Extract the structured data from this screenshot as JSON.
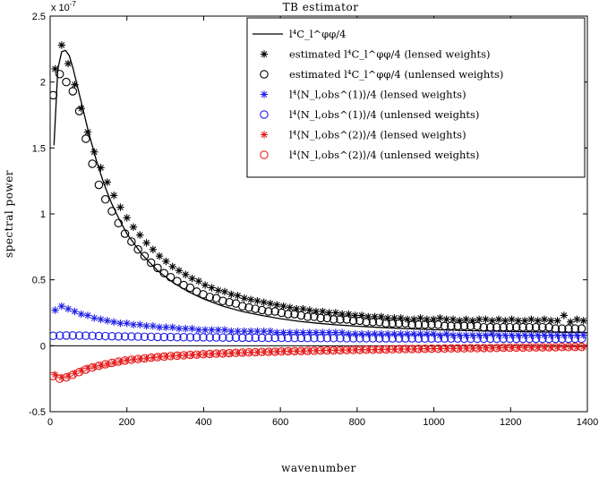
{
  "chart_data": {
    "type": "scatter",
    "title": "TB estimator",
    "xlabel": "wavenumber",
    "ylabel": "spectral power",
    "y_exponent_label": "x 10",
    "y_exponent_power": "-7",
    "xlim": [
      0,
      1400
    ],
    "ylim": [
      -0.5,
      2.5
    ],
    "xticks": [
      "0",
      "200",
      "400",
      "600",
      "800",
      "1000",
      "1200",
      "1400"
    ],
    "yticks": [
      "-0.5",
      "0",
      "0.5",
      "1",
      "1.5",
      "2",
      "2.5"
    ],
    "legend_position": "top-right",
    "colors": {
      "black": "#000000",
      "blue": "#1f1fe6",
      "red": "#e61f1f"
    },
    "series": [
      {
        "name": "l⁴C_l^φφ/4",
        "style": "line",
        "color": "#000000",
        "x": [
          10,
          20,
          30,
          40,
          50,
          60,
          80,
          100,
          120,
          140,
          160,
          180,
          200,
          240,
          280,
          320,
          360,
          400,
          450,
          500,
          550,
          600,
          650,
          700,
          750,
          800,
          850,
          900,
          950,
          1000,
          1100,
          1200,
          1300,
          1400
        ],
        "y": [
          1.52,
          2.1,
          2.23,
          2.24,
          2.2,
          2.1,
          1.86,
          1.62,
          1.41,
          1.23,
          1.08,
          0.96,
          0.85,
          0.69,
          0.57,
          0.48,
          0.41,
          0.355,
          0.3,
          0.26,
          0.23,
          0.205,
          0.185,
          0.17,
          0.158,
          0.148,
          0.14,
          0.133,
          0.127,
          0.122,
          0.114,
          0.108,
          0.104,
          0.1
        ]
      },
      {
        "name": "estimated l⁴C_l^φφ/4 (lensed weights)",
        "style": "marker",
        "marker": "asterisk",
        "color": "#000000",
        "x": [
          13,
          30,
          47,
          64,
          81,
          98,
          115,
          132,
          149,
          166,
          183,
          200,
          217,
          234,
          251,
          268,
          285,
          302,
          319,
          336,
          353,
          370,
          387,
          404,
          421,
          438,
          455,
          472,
          489,
          506,
          523,
          540,
          557,
          574,
          591,
          608,
          625,
          642,
          659,
          676,
          693,
          710,
          727,
          744,
          761,
          778,
          795,
          812,
          829,
          846,
          863,
          880,
          897,
          914,
          931,
          948,
          965,
          982,
          999,
          1016,
          1033,
          1050,
          1067,
          1084,
          1101,
          1118,
          1135,
          1152,
          1169,
          1186,
          1203,
          1220,
          1237,
          1254,
          1271,
          1288,
          1305,
          1322,
          1339,
          1356,
          1373,
          1390
        ],
        "y": [
          2.1,
          2.28,
          2.14,
          1.98,
          1.8,
          1.62,
          1.47,
          1.35,
          1.24,
          1.14,
          1.05,
          0.97,
          0.9,
          0.84,
          0.78,
          0.73,
          0.68,
          0.64,
          0.6,
          0.57,
          0.54,
          0.51,
          0.49,
          0.46,
          0.44,
          0.42,
          0.41,
          0.39,
          0.38,
          0.36,
          0.35,
          0.34,
          0.33,
          0.32,
          0.31,
          0.3,
          0.29,
          0.28,
          0.28,
          0.27,
          0.26,
          0.26,
          0.25,
          0.25,
          0.24,
          0.24,
          0.23,
          0.23,
          0.22,
          0.22,
          0.22,
          0.21,
          0.21,
          0.21,
          0.2,
          0.2,
          0.21,
          0.2,
          0.2,
          0.21,
          0.2,
          0.2,
          0.19,
          0.2,
          0.19,
          0.2,
          0.2,
          0.19,
          0.2,
          0.19,
          0.2,
          0.19,
          0.19,
          0.2,
          0.19,
          0.2,
          0.19,
          0.19,
          0.23,
          0.18,
          0.2,
          0.19
        ]
      },
      {
        "name": "estimated l⁴C_l^φφ/4 (unlensed weights)",
        "style": "marker",
        "marker": "circle",
        "color": "#000000",
        "x": [
          8,
          25,
          42,
          59,
          76,
          93,
          110,
          127,
          144,
          161,
          178,
          195,
          212,
          229,
          246,
          263,
          280,
          297,
          314,
          331,
          348,
          365,
          382,
          399,
          416,
          433,
          450,
          467,
          484,
          501,
          518,
          535,
          552,
          569,
          586,
          603,
          620,
          637,
          654,
          671,
          688,
          705,
          722,
          739,
          756,
          773,
          790,
          807,
          824,
          841,
          858,
          875,
          892,
          909,
          926,
          943,
          960,
          977,
          994,
          1011,
          1028,
          1045,
          1062,
          1079,
          1096,
          1113,
          1130,
          1147,
          1164,
          1181,
          1198,
          1215,
          1232,
          1249,
          1266,
          1283,
          1300,
          1317,
          1334,
          1351,
          1368,
          1385
        ],
        "y": [
          1.9,
          2.06,
          2.0,
          1.93,
          1.78,
          1.57,
          1.38,
          1.22,
          1.11,
          1.02,
          0.93,
          0.85,
          0.79,
          0.73,
          0.68,
          0.63,
          0.59,
          0.55,
          0.52,
          0.49,
          0.46,
          0.44,
          0.41,
          0.39,
          0.37,
          0.36,
          0.34,
          0.33,
          0.32,
          0.3,
          0.29,
          0.28,
          0.27,
          0.26,
          0.26,
          0.25,
          0.24,
          0.24,
          0.23,
          0.22,
          0.22,
          0.21,
          0.21,
          0.2,
          0.2,
          0.2,
          0.19,
          0.19,
          0.18,
          0.18,
          0.18,
          0.17,
          0.17,
          0.17,
          0.17,
          0.16,
          0.16,
          0.16,
          0.16,
          0.16,
          0.15,
          0.15,
          0.15,
          0.15,
          0.15,
          0.15,
          0.14,
          0.14,
          0.14,
          0.14,
          0.14,
          0.14,
          0.14,
          0.14,
          0.14,
          0.14,
          0.14,
          0.13,
          0.13,
          0.13,
          0.13,
          0.13
        ]
      },
      {
        "name": "l⁴⟨N_l,obs^(1)⟩/4 (lensed weights)",
        "style": "marker",
        "marker": "asterisk",
        "color": "#1f1fe6",
        "x": [
          13,
          30,
          47,
          64,
          81,
          98,
          115,
          132,
          149,
          166,
          183,
          200,
          217,
          234,
          251,
          268,
          285,
          302,
          319,
          336,
          353,
          370,
          387,
          404,
          421,
          438,
          455,
          472,
          489,
          506,
          523,
          540,
          557,
          574,
          591,
          608,
          625,
          642,
          659,
          676,
          693,
          710,
          727,
          744,
          761,
          778,
          795,
          812,
          829,
          846,
          863,
          880,
          897,
          914,
          931,
          948,
          965,
          982,
          999,
          1016,
          1033,
          1050,
          1067,
          1084,
          1101,
          1118,
          1135,
          1152,
          1169,
          1186,
          1203,
          1220,
          1237,
          1254,
          1271,
          1288,
          1305,
          1322,
          1339,
          1356,
          1373,
          1390
        ],
        "y": [
          0.27,
          0.3,
          0.28,
          0.26,
          0.24,
          0.23,
          0.21,
          0.2,
          0.19,
          0.18,
          0.17,
          0.17,
          0.16,
          0.16,
          0.15,
          0.15,
          0.14,
          0.14,
          0.14,
          0.13,
          0.13,
          0.13,
          0.12,
          0.12,
          0.12,
          0.12,
          0.12,
          0.11,
          0.11,
          0.11,
          0.11,
          0.11,
          0.11,
          0.11,
          0.1,
          0.1,
          0.1,
          0.1,
          0.1,
          0.1,
          0.1,
          0.1,
          0.1,
          0.1,
          0.1,
          0.09,
          0.09,
          0.09,
          0.09,
          0.09,
          0.09,
          0.09,
          0.09,
          0.09,
          0.09,
          0.09,
          0.09,
          0.09,
          0.09,
          0.08,
          0.09,
          0.08,
          0.08,
          0.08,
          0.08,
          0.08,
          0.08,
          0.09,
          0.08,
          0.08,
          0.08,
          0.08,
          0.08,
          0.08,
          0.08,
          0.08,
          0.08,
          0.08,
          0.08,
          0.08,
          0.08,
          0.08
        ]
      },
      {
        "name": "l⁴⟨N_l,obs^(1)⟩/4 (unlensed weights)",
        "style": "marker",
        "marker": "circle",
        "color": "#1f1fe6",
        "x": [
          8,
          25,
          42,
          59,
          76,
          93,
          110,
          127,
          144,
          161,
          178,
          195,
          212,
          229,
          246,
          263,
          280,
          297,
          314,
          331,
          348,
          365,
          382,
          399,
          416,
          433,
          450,
          467,
          484,
          501,
          518,
          535,
          552,
          569,
          586,
          603,
          620,
          637,
          654,
          671,
          688,
          705,
          722,
          739,
          756,
          773,
          790,
          807,
          824,
          841,
          858,
          875,
          892,
          909,
          926,
          943,
          960,
          977,
          994,
          1011,
          1028,
          1045,
          1062,
          1079,
          1096,
          1113,
          1130,
          1147,
          1164,
          1181,
          1198,
          1215,
          1232,
          1249,
          1266,
          1283,
          1300,
          1317,
          1334,
          1351,
          1368,
          1385
        ],
        "y": [
          0.075,
          0.077,
          0.078,
          0.078,
          0.077,
          0.076,
          0.075,
          0.074,
          0.073,
          0.072,
          0.071,
          0.07,
          0.07,
          0.069,
          0.068,
          0.068,
          0.067,
          0.066,
          0.066,
          0.065,
          0.065,
          0.064,
          0.064,
          0.064,
          0.063,
          0.063,
          0.062,
          0.062,
          0.062,
          0.061,
          0.061,
          0.061,
          0.06,
          0.06,
          0.06,
          0.06,
          0.059,
          0.059,
          0.059,
          0.059,
          0.058,
          0.058,
          0.058,
          0.058,
          0.058,
          0.057,
          0.057,
          0.057,
          0.057,
          0.057,
          0.056,
          0.056,
          0.056,
          0.056,
          0.056,
          0.056,
          0.055,
          0.055,
          0.055,
          0.055,
          0.055,
          0.055,
          0.055,
          0.054,
          0.054,
          0.054,
          0.054,
          0.054,
          0.054,
          0.054,
          0.054,
          0.053,
          0.053,
          0.053,
          0.053,
          0.053,
          0.053,
          0.053,
          0.053,
          0.053,
          0.053,
          0.053
        ]
      },
      {
        "name": "l⁴⟨N_l,obs^(2)⟩/4 (lensed weights)",
        "style": "marker",
        "marker": "asterisk",
        "color": "#e61f1f",
        "x": [
          13,
          30,
          47,
          64,
          81,
          98,
          115,
          132,
          149,
          166,
          183,
          200,
          217,
          234,
          251,
          268,
          285,
          302,
          319,
          336,
          353,
          370,
          387,
          404,
          421,
          438,
          455,
          472,
          489,
          506,
          523,
          540,
          557,
          574,
          591,
          608,
          625,
          642,
          659,
          676,
          693,
          710,
          727,
          744,
          761,
          778,
          795,
          812,
          829,
          846,
          863,
          880,
          897,
          914,
          931,
          948,
          965,
          982,
          999,
          1016,
          1033,
          1050,
          1067,
          1084,
          1101,
          1118,
          1135,
          1152,
          1169,
          1186,
          1203,
          1220,
          1237,
          1254,
          1271,
          1288,
          1305,
          1322,
          1339,
          1356,
          1373,
          1390
        ],
        "y": [
          -0.22,
          -0.24,
          -0.23,
          -0.21,
          -0.19,
          -0.17,
          -0.16,
          -0.15,
          -0.14,
          -0.13,
          -0.12,
          -0.11,
          -0.105,
          -0.1,
          -0.095,
          -0.09,
          -0.085,
          -0.08,
          -0.078,
          -0.075,
          -0.072,
          -0.07,
          -0.067,
          -0.065,
          -0.062,
          -0.06,
          -0.058,
          -0.056,
          -0.054,
          -0.052,
          -0.05,
          -0.049,
          -0.047,
          -0.046,
          -0.044,
          -0.043,
          -0.042,
          -0.041,
          -0.04,
          -0.038,
          -0.037,
          -0.036,
          -0.035,
          -0.034,
          -0.033,
          -0.032,
          -0.031,
          -0.03,
          -0.03,
          -0.029,
          -0.028,
          -0.027,
          -0.026,
          -0.025,
          -0.025,
          -0.024,
          -0.023,
          -0.022,
          -0.022,
          -0.021,
          -0.02,
          -0.02,
          -0.019,
          -0.018,
          -0.018,
          -0.017,
          -0.016,
          -0.016,
          -0.015,
          -0.015,
          -0.014,
          -0.013,
          -0.013,
          -0.012,
          -0.012,
          -0.011,
          -0.011,
          -0.01,
          -0.01,
          -0.009,
          -0.009,
          -0.008
        ]
      },
      {
        "name": "l⁴⟨N_l,obs^(2)⟩/4 (unlensed weights)",
        "style": "marker",
        "marker": "circle",
        "color": "#e61f1f",
        "x": [
          8,
          25,
          42,
          59,
          76,
          93,
          110,
          127,
          144,
          161,
          178,
          195,
          212,
          229,
          246,
          263,
          280,
          297,
          314,
          331,
          348,
          365,
          382,
          399,
          416,
          433,
          450,
          467,
          484,
          501,
          518,
          535,
          552,
          569,
          586,
          603,
          620,
          637,
          654,
          671,
          688,
          705,
          722,
          739,
          756,
          773,
          790,
          807,
          824,
          841,
          858,
          875,
          892,
          909,
          926,
          943,
          960,
          977,
          994,
          1011,
          1028,
          1045,
          1062,
          1079,
          1096,
          1113,
          1130,
          1147,
          1164,
          1181,
          1198,
          1215,
          1232,
          1249,
          1266,
          1283,
          1300,
          1317,
          1334,
          1351,
          1368,
          1385
        ],
        "y": [
          -0.23,
          -0.25,
          -0.24,
          -0.22,
          -0.2,
          -0.18,
          -0.165,
          -0.152,
          -0.14,
          -0.13,
          -0.12,
          -0.112,
          -0.106,
          -0.1,
          -0.095,
          -0.09,
          -0.086,
          -0.082,
          -0.078,
          -0.075,
          -0.072,
          -0.069,
          -0.067,
          -0.064,
          -0.062,
          -0.06,
          -0.058,
          -0.056,
          -0.054,
          -0.052,
          -0.05,
          -0.049,
          -0.047,
          -0.046,
          -0.045,
          -0.043,
          -0.042,
          -0.041,
          -0.04,
          -0.039,
          -0.038,
          -0.037,
          -0.036,
          -0.035,
          -0.034,
          -0.033,
          -0.032,
          -0.031,
          -0.03,
          -0.03,
          -0.029,
          -0.028,
          -0.027,
          -0.026,
          -0.025,
          -0.025,
          -0.024,
          -0.023,
          -0.022,
          -0.022,
          -0.021,
          -0.02,
          -0.02,
          -0.019,
          -0.018,
          -0.018,
          -0.017,
          -0.017,
          -0.016,
          -0.015,
          -0.015,
          -0.014,
          -0.014,
          -0.013,
          -0.012,
          -0.012,
          -0.011,
          -0.011,
          -0.01,
          -0.01,
          -0.009,
          -0.009
        ]
      }
    ]
  }
}
